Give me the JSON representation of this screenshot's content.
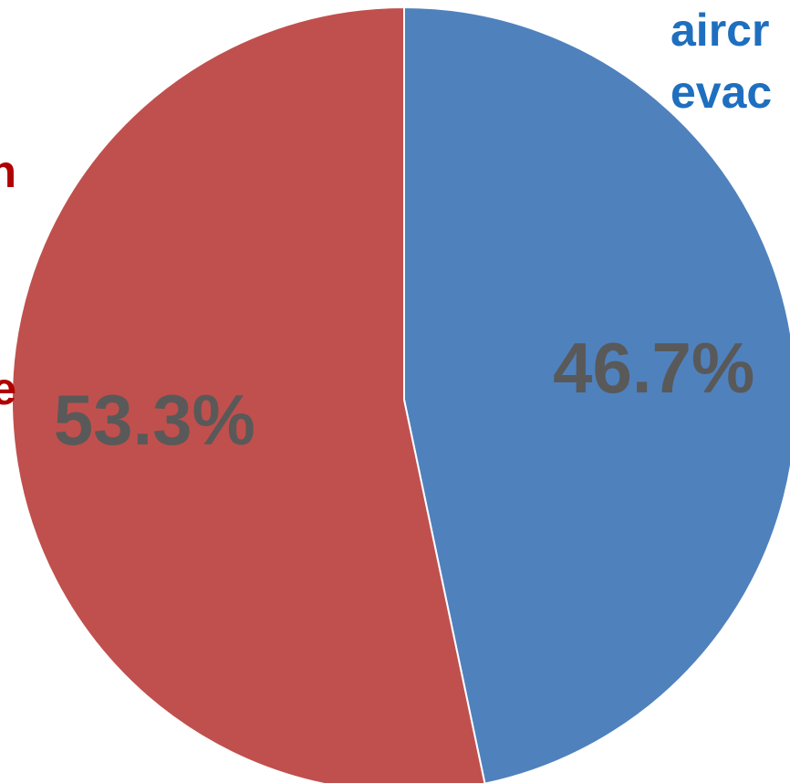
{
  "chart_data": {
    "type": "pie",
    "slices": [
      {
        "value": 46.7,
        "label": "46.7%",
        "color": "#4f81bd",
        "legend_lines": [
          "aircr",
          "evac"
        ],
        "legend_color": "#1f6fbf"
      },
      {
        "value": 53.3,
        "label": "53.3%",
        "color": "#c0504d",
        "legend_lines": [
          "n",
          "e"
        ],
        "legend_color": "#b00000"
      }
    ]
  }
}
